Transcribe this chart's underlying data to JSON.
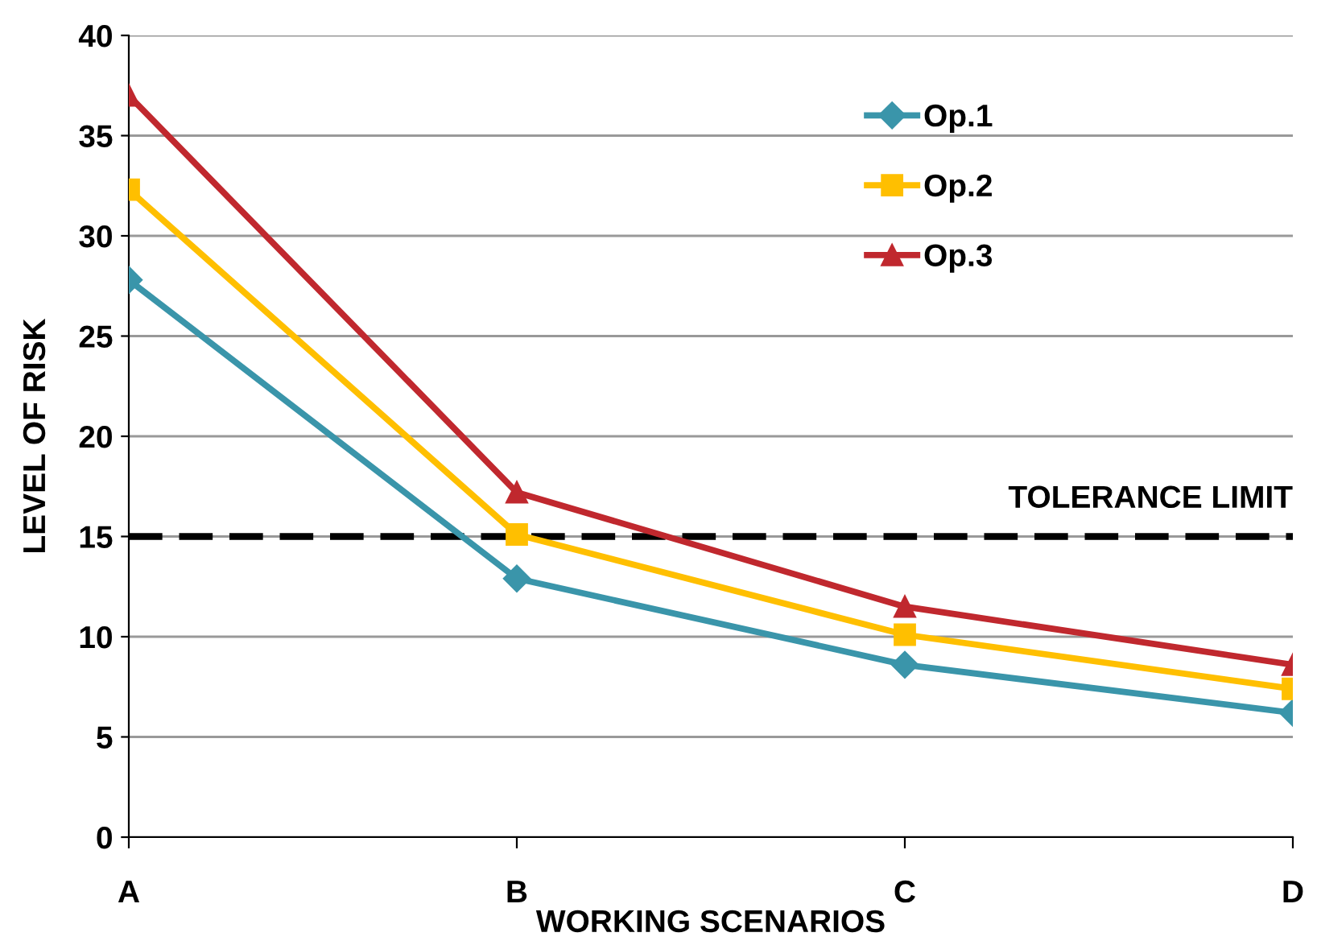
{
  "chart_data": {
    "type": "line",
    "xlabel": "WORKING SCENARIOS",
    "ylabel": "LEVEL OF RISK",
    "categories": [
      "A",
      "B",
      "C",
      "D"
    ],
    "series": [
      {
        "name": "Op.1",
        "color": "#3a95aa",
        "marker": "diamond",
        "values": [
          27.8,
          12.9,
          8.6,
          6.2
        ]
      },
      {
        "name": "Op.2",
        "color": "#ffbf00",
        "marker": "square",
        "values": [
          32.3,
          15.1,
          10.1,
          7.4
        ]
      },
      {
        "name": "Op.3",
        "color": "#c0282e",
        "marker": "triangle",
        "values": [
          37.0,
          17.2,
          11.5,
          8.6
        ]
      }
    ],
    "ylim": [
      0,
      40
    ],
    "yticks": [
      0,
      5,
      10,
      15,
      20,
      25,
      30,
      35,
      40
    ],
    "grid": "y",
    "legend": "top right",
    "line_style": "solid",
    "ref_lines": [
      {
        "axis": "y",
        "value": 15,
        "label": "TOLERANCE LIMIT",
        "color": "#000000",
        "line_style": "dashed"
      }
    ]
  }
}
